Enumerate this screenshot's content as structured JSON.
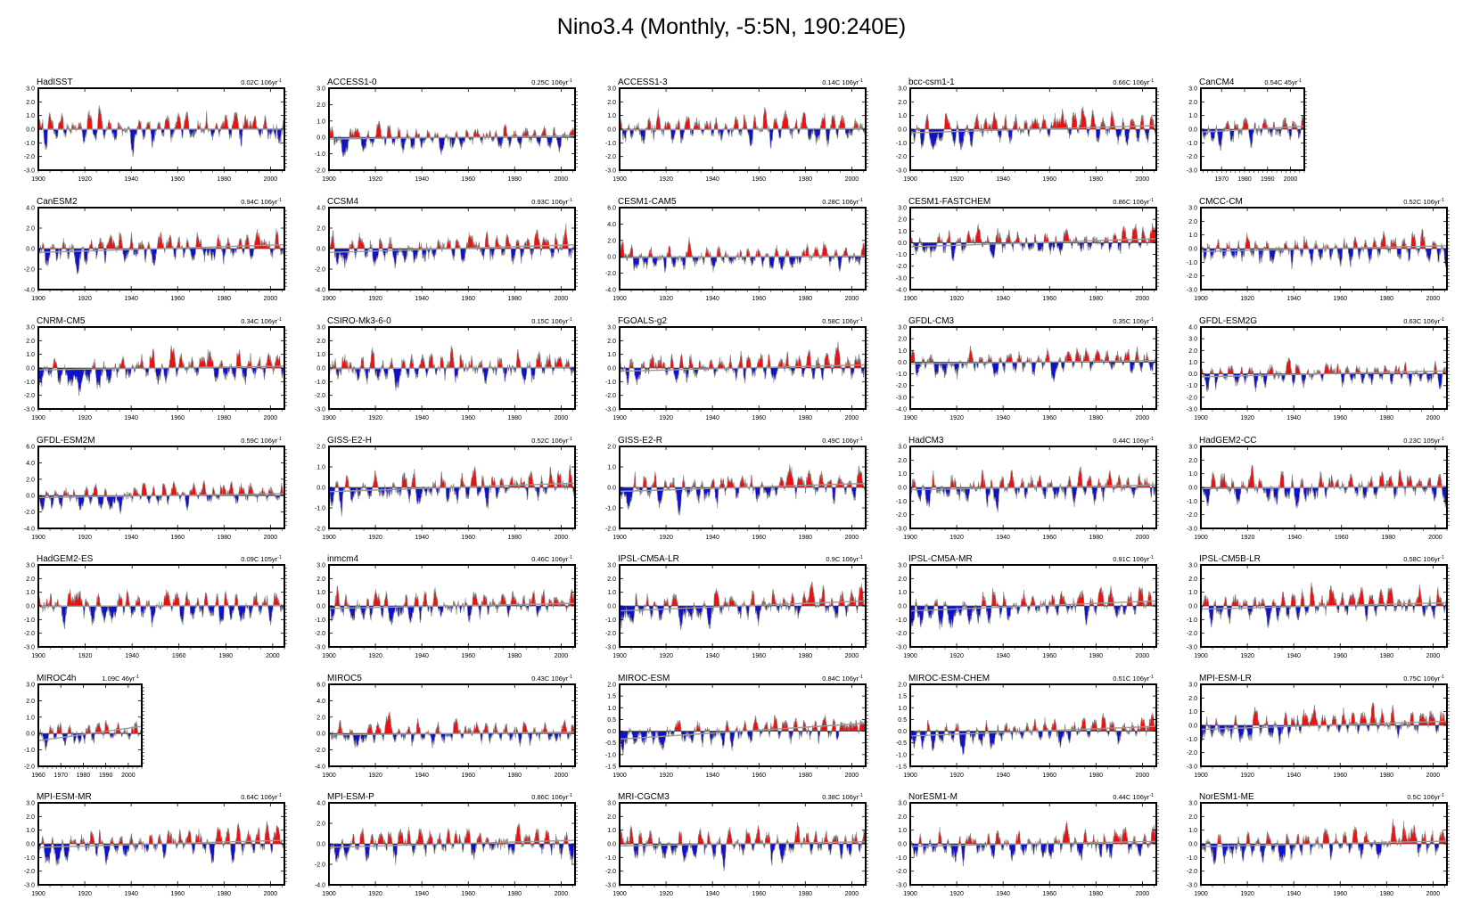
{
  "title": "Nino3.4 (Monthly, -5:5N, 190:240E)",
  "colors": {
    "positive": "#ee1111",
    "negative": "#1111cc",
    "line": "#888888",
    "trend": "#999999",
    "axis": "#000000"
  },
  "chart_data": [
    {
      "type": "area",
      "model": "HadISST",
      "trend": "0.02C 106yr",
      "trend_exp": "-1",
      "y_ticks": [
        "3.0",
        "2.0",
        "1.0",
        "0.0",
        "-1.0",
        "-2.0",
        "-3.0"
      ],
      "ylim": [
        -3,
        3
      ],
      "x_ticks": [
        1900,
        1920,
        1940,
        1960,
        1980,
        2000
      ],
      "xlim": [
        1900,
        2006
      ]
    },
    {
      "type": "area",
      "model": "ACCESS1-0",
      "trend": "0.25C 106yr",
      "trend_exp": "-1",
      "y_ticks": [
        "3.0",
        "2.0",
        "1.0",
        "0.0",
        "-1.0",
        "-2.0"
      ],
      "ylim": [
        -2,
        3
      ],
      "x_ticks": [
        1900,
        1920,
        1940,
        1960,
        1980,
        2000
      ],
      "xlim": [
        1900,
        2006
      ]
    },
    {
      "type": "area",
      "model": "ACCESS1-3",
      "trend": "0.14C 106yr",
      "trend_exp": "-1",
      "y_ticks": [
        "3.0",
        "2.0",
        "1.0",
        "0.0",
        "-1.0",
        "-2.0",
        "-3.0"
      ],
      "ylim": [
        -3,
        3
      ],
      "x_ticks": [
        1900,
        1920,
        1940,
        1960,
        1980,
        2000
      ],
      "xlim": [
        1900,
        2006
      ]
    },
    {
      "type": "area",
      "model": "bcc-csm1-1",
      "trend": "0.66C 106yr",
      "trend_exp": "-1",
      "y_ticks": [
        "3.0",
        "2.0",
        "1.0",
        "0.0",
        "-1.0",
        "-2.0",
        "-3.0"
      ],
      "ylim": [
        -3,
        3
      ],
      "x_ticks": [
        1900,
        1920,
        1940,
        1960,
        1980,
        2000
      ],
      "xlim": [
        1900,
        2006
      ]
    },
    {
      "type": "area",
      "model": "CanCM4",
      "trend": "0.54C 45yr",
      "trend_exp": "-1",
      "y_ticks": [
        "3.0",
        "2.0",
        "1.0",
        "0.0",
        "-1.0",
        "-2.0",
        "-3.0"
      ],
      "ylim": [
        -3,
        3
      ],
      "x_ticks": [
        1970,
        1980,
        1990,
        2000
      ],
      "xlim": [
        1961,
        2006
      ]
    },
    {
      "type": "area",
      "model": "CanESM2",
      "trend": "0.94C 106yr",
      "trend_exp": "-1",
      "y_ticks": [
        "4.0",
        "2.0",
        "0.0",
        "-2.0",
        "-4.0"
      ],
      "ylim": [
        -4,
        4
      ],
      "x_ticks": [
        1900,
        1920,
        1940,
        1960,
        1980,
        2000
      ],
      "xlim": [
        1900,
        2006
      ]
    },
    {
      "type": "area",
      "model": "CCSM4",
      "trend": "0.93C 106yr",
      "trend_exp": "-1",
      "y_ticks": [
        "4.0",
        "2.0",
        "0.0",
        "-2.0",
        "-4.0"
      ],
      "ylim": [
        -4,
        4
      ],
      "x_ticks": [
        1900,
        1920,
        1940,
        1960,
        1980,
        2000
      ],
      "xlim": [
        1900,
        2006
      ]
    },
    {
      "type": "area",
      "model": "CESM1-CAM5",
      "trend": "0.28C 106yr",
      "trend_exp": "-1",
      "y_ticks": [
        "6.0",
        "4.0",
        "2.0",
        "0.0",
        "-2.0",
        "-4.0"
      ],
      "ylim": [
        -4,
        6
      ],
      "x_ticks": [
        1900,
        1920,
        1940,
        1960,
        1980,
        2000
      ],
      "xlim": [
        1900,
        2006
      ]
    },
    {
      "type": "area",
      "model": "CESM1-FASTCHEM",
      "trend": "0.86C 106yr",
      "trend_exp": "-1",
      "y_ticks": [
        "3.0",
        "2.0",
        "1.0",
        "0.0",
        "-1.0",
        "-2.0",
        "-3.0",
        "-4.0"
      ],
      "ylim": [
        -4,
        3
      ],
      "x_ticks": [
        1900,
        1920,
        1940,
        1960,
        1980,
        2000
      ],
      "xlim": [
        1900,
        2006
      ]
    },
    {
      "type": "area",
      "model": "CMCC-CM",
      "trend": "0.52C 106yr",
      "trend_exp": "-1",
      "y_ticks": [
        "3.0",
        "2.0",
        "1.0",
        "0.0",
        "-1.0",
        "-2.0",
        "-3.0"
      ],
      "ylim": [
        -3,
        3
      ],
      "x_ticks": [
        1900,
        1920,
        1940,
        1960,
        1980,
        2000
      ],
      "xlim": [
        1900,
        2006
      ]
    },
    {
      "type": "area",
      "model": "CNRM-CM5",
      "trend": "0.34C 106yr",
      "trend_exp": "-1",
      "y_ticks": [
        "3.0",
        "2.0",
        "1.0",
        "0.0",
        "-1.0",
        "-2.0",
        "-3.0"
      ],
      "ylim": [
        -3,
        3
      ],
      "x_ticks": [
        1900,
        1920,
        1940,
        1960,
        1980,
        2000
      ],
      "xlim": [
        1900,
        2006
      ]
    },
    {
      "type": "area",
      "model": "CSIRO-Mk3-6-0",
      "trend": "0.15C 106yr",
      "trend_exp": "-1",
      "y_ticks": [
        "3.0",
        "2.0",
        "1.0",
        "0.0",
        "-1.0",
        "-2.0",
        "-3.0"
      ],
      "ylim": [
        -3,
        3
      ],
      "x_ticks": [
        1900,
        1920,
        1940,
        1960,
        1980,
        2000
      ],
      "xlim": [
        1900,
        2006
      ]
    },
    {
      "type": "area",
      "model": "FGOALS-g2",
      "trend": "0.58C 106yr",
      "trend_exp": "-1",
      "y_ticks": [
        "3.0",
        "2.0",
        "1.0",
        "0.0",
        "-1.0",
        "-2.0",
        "-3.0"
      ],
      "ylim": [
        -3,
        3
      ],
      "x_ticks": [
        1900,
        1920,
        1940,
        1960,
        1980,
        2000
      ],
      "xlim": [
        1900,
        2006
      ]
    },
    {
      "type": "area",
      "model": "GFDL-CM3",
      "trend": "0.35C 106yr",
      "trend_exp": "-1",
      "y_ticks": [
        "3.0",
        "2.0",
        "1.0",
        "0.0",
        "-1.0",
        "-2.0",
        "-3.0",
        "-4.0"
      ],
      "ylim": [
        -4,
        3
      ],
      "x_ticks": [
        1900,
        1920,
        1940,
        1960,
        1980,
        2000
      ],
      "xlim": [
        1900,
        2006
      ]
    },
    {
      "type": "area",
      "model": "GFDL-ESM2G",
      "trend": "0.63C 106yr",
      "trend_exp": "-1",
      "y_ticks": [
        "4.0",
        "3.0",
        "2.0",
        "1.0",
        "0.0",
        "-1.0",
        "-2.0",
        "-3.0"
      ],
      "ylim": [
        -3,
        4
      ],
      "x_ticks": [
        1900,
        1920,
        1940,
        1960,
        1980,
        2000
      ],
      "xlim": [
        1900,
        2006
      ]
    },
    {
      "type": "area",
      "model": "GFDL-ESM2M",
      "trend": "0.59C 106yr",
      "trend_exp": "-1",
      "y_ticks": [
        "6.0",
        "4.0",
        "2.0",
        "0.0",
        "-2.0",
        "-4.0"
      ],
      "ylim": [
        -4,
        6
      ],
      "x_ticks": [
        1900,
        1920,
        1940,
        1960,
        1980,
        2000
      ],
      "xlim": [
        1900,
        2006
      ]
    },
    {
      "type": "area",
      "model": "GISS-E2-H",
      "trend": "0.52C 106yr",
      "trend_exp": "-1",
      "y_ticks": [
        "2.0",
        "1.0",
        "0.0",
        "-1.0",
        "-2.0"
      ],
      "ylim": [
        -2,
        2
      ],
      "x_ticks": [
        1900,
        1920,
        1940,
        1960,
        1980,
        2000
      ],
      "xlim": [
        1900,
        2006
      ]
    },
    {
      "type": "area",
      "model": "GISS-E2-R",
      "trend": "0.49C 106yr",
      "trend_exp": "-1",
      "y_ticks": [
        "2.0",
        "1.0",
        "0.0",
        "-1.0",
        "-2.0"
      ],
      "ylim": [
        -2,
        2
      ],
      "x_ticks": [
        1900,
        1920,
        1940,
        1960,
        1980,
        2000
      ],
      "xlim": [
        1900,
        2006
      ]
    },
    {
      "type": "area",
      "model": "HadCM3",
      "trend": "0.44C 106yr",
      "trend_exp": "-1",
      "y_ticks": [
        "3.0",
        "2.0",
        "1.0",
        "0.0",
        "-1.0",
        "-2.0",
        "-3.0"
      ],
      "ylim": [
        -3,
        3
      ],
      "x_ticks": [
        1900,
        1920,
        1940,
        1960,
        1980,
        2000
      ],
      "xlim": [
        1900,
        2006
      ]
    },
    {
      "type": "area",
      "model": "HadGEM2-CC",
      "trend": "0.23C 105yr",
      "trend_exp": "-1",
      "y_ticks": [
        "3.0",
        "2.0",
        "1.0",
        "0.0",
        "-1.0",
        "-2.0",
        "-3.0"
      ],
      "ylim": [
        -3,
        3
      ],
      "x_ticks": [
        1900,
        1920,
        1940,
        1960,
        1980,
        2000
      ],
      "xlim": [
        1900,
        2005
      ]
    },
    {
      "type": "area",
      "model": "HadGEM2-ES",
      "trend": "0.09C 105yr",
      "trend_exp": "-1",
      "y_ticks": [
        "3.0",
        "2.0",
        "1.0",
        "0.0",
        "-1.0",
        "-2.0",
        "-3.0"
      ],
      "ylim": [
        -3,
        3
      ],
      "x_ticks": [
        1900,
        1920,
        1940,
        1960,
        1980,
        2000
      ],
      "xlim": [
        1900,
        2005
      ]
    },
    {
      "type": "area",
      "model": "inmcm4",
      "trend": "0.46C 106yr",
      "trend_exp": "-1",
      "y_ticks": [
        "3.0",
        "2.0",
        "1.0",
        "0.0",
        "-1.0",
        "-2.0",
        "-3.0"
      ],
      "ylim": [
        -3,
        3
      ],
      "x_ticks": [
        1900,
        1920,
        1940,
        1960,
        1980,
        2000
      ],
      "xlim": [
        1900,
        2006
      ]
    },
    {
      "type": "area",
      "model": "IPSL-CM5A-LR",
      "trend": "0.9C 106yr",
      "trend_exp": "-1",
      "y_ticks": [
        "3.0",
        "2.0",
        "1.0",
        "0.0",
        "-1.0",
        "-2.0",
        "-3.0"
      ],
      "ylim": [
        -3,
        3
      ],
      "x_ticks": [
        1900,
        1920,
        1940,
        1960,
        1980,
        2000
      ],
      "xlim": [
        1900,
        2006
      ]
    },
    {
      "type": "area",
      "model": "IPSL-CM5A-MR",
      "trend": "0.91C 106yr",
      "trend_exp": "-1",
      "y_ticks": [
        "3.0",
        "2.0",
        "1.0",
        "0.0",
        "-1.0",
        "-2.0",
        "-3.0"
      ],
      "ylim": [
        -3,
        3
      ],
      "x_ticks": [
        1900,
        1920,
        1940,
        1960,
        1980,
        2000
      ],
      "xlim": [
        1900,
        2006
      ]
    },
    {
      "type": "area",
      "model": "IPSL-CM5B-LR",
      "trend": "0.58C 106yr",
      "trend_exp": "-1",
      "y_ticks": [
        "3.0",
        "2.0",
        "1.0",
        "0.0",
        "-1.0",
        "-2.0",
        "-3.0"
      ],
      "ylim": [
        -3,
        3
      ],
      "x_ticks": [
        1900,
        1920,
        1940,
        1960,
        1980,
        2000
      ],
      "xlim": [
        1900,
        2006
      ]
    },
    {
      "type": "area",
      "model": "MIROC4h",
      "trend": "1.09C 46yr",
      "trend_exp": "-1",
      "y_ticks": [
        "3.0",
        "2.0",
        "1.0",
        "0.0",
        "-1.0",
        "-2.0"
      ],
      "ylim": [
        -2,
        3
      ],
      "x_ticks": [
        1960,
        1970,
        1980,
        1990,
        2000
      ],
      "xlim": [
        1960,
        2006
      ]
    },
    {
      "type": "area",
      "model": "MIROC5",
      "trend": "0.43C 106yr",
      "trend_exp": "-1",
      "y_ticks": [
        "6.0",
        "4.0",
        "2.0",
        "0.0",
        "-2.0",
        "-4.0"
      ],
      "ylim": [
        -4,
        6
      ],
      "x_ticks": [
        1900,
        1920,
        1940,
        1960,
        1980,
        2000
      ],
      "xlim": [
        1900,
        2006
      ]
    },
    {
      "type": "area",
      "model": "MIROC-ESM",
      "trend": "0.84C 106yr",
      "trend_exp": "-1",
      "y_ticks": [
        "2.0",
        "1.5",
        "1.0",
        "0.5",
        "0.0",
        "-0.5",
        "-1.0",
        "-1.5"
      ],
      "ylim": [
        -1.5,
        2
      ],
      "x_ticks": [
        1900,
        1920,
        1940,
        1960,
        1980,
        2000
      ],
      "xlim": [
        1900,
        2006
      ]
    },
    {
      "type": "area",
      "model": "MIROC-ESM-CHEM",
      "trend": "0.51C 106yr",
      "trend_exp": "-1",
      "y_ticks": [
        "2.0",
        "1.5",
        "1.0",
        "0.5",
        "0.0",
        "-0.5",
        "-1.0",
        "-1.5"
      ],
      "ylim": [
        -1.5,
        2
      ],
      "x_ticks": [
        1900,
        1920,
        1940,
        1960,
        1980,
        2000
      ],
      "xlim": [
        1900,
        2006
      ]
    },
    {
      "type": "area",
      "model": "MPI-ESM-LR",
      "trend": "0.75C 106yr",
      "trend_exp": "-1",
      "y_ticks": [
        "3.0",
        "2.0",
        "1.0",
        "0.0",
        "-1.0",
        "-2.0",
        "-3.0"
      ],
      "ylim": [
        -3,
        3
      ],
      "x_ticks": [
        1900,
        1920,
        1940,
        1960,
        1980,
        2000
      ],
      "xlim": [
        1900,
        2006
      ]
    },
    {
      "type": "area",
      "model": "MPI-ESM-MR",
      "trend": "0.64C 106yr",
      "trend_exp": "-1",
      "y_ticks": [
        "3.0",
        "2.0",
        "1.0",
        "0.0",
        "-1.0",
        "-2.0",
        "-3.0"
      ],
      "ylim": [
        -3,
        3
      ],
      "x_ticks": [
        1900,
        1920,
        1940,
        1960,
        1980,
        2000
      ],
      "xlim": [
        1900,
        2006
      ]
    },
    {
      "type": "area",
      "model": "MPI-ESM-P",
      "trend": "0.86C 106yr",
      "trend_exp": "-1",
      "y_ticks": [
        "4.0",
        "2.0",
        "0.0",
        "-2.0",
        "-4.0"
      ],
      "ylim": [
        -4,
        4
      ],
      "x_ticks": [
        1900,
        1920,
        1940,
        1960,
        1980,
        2000
      ],
      "xlim": [
        1900,
        2006
      ]
    },
    {
      "type": "area",
      "model": "MRI-CGCM3",
      "trend": "0.38C 106yr",
      "trend_exp": "-1",
      "y_ticks": [
        "3.0",
        "2.0",
        "1.0",
        "0.0",
        "-1.0",
        "-2.0",
        "-3.0"
      ],
      "ylim": [
        -3,
        3
      ],
      "x_ticks": [
        1900,
        1920,
        1940,
        1960,
        1980,
        2000
      ],
      "xlim": [
        1900,
        2006
      ]
    },
    {
      "type": "area",
      "model": "NorESM1-M",
      "trend": "0.44C 106yr",
      "trend_exp": "-1",
      "y_ticks": [
        "3.0",
        "2.0",
        "1.0",
        "0.0",
        "-1.0",
        "-2.0",
        "-3.0"
      ],
      "ylim": [
        -3,
        3
      ],
      "x_ticks": [
        1900,
        1920,
        1940,
        1960,
        1980,
        2000
      ],
      "xlim": [
        1900,
        2006
      ]
    },
    {
      "type": "area",
      "model": "NorESM1-ME",
      "trend": "0.5C 106yr",
      "trend_exp": "-1",
      "y_ticks": [
        "3.0",
        "2.0",
        "1.0",
        "0.0",
        "-1.0",
        "-2.0",
        "-3.0"
      ],
      "ylim": [
        -3,
        3
      ],
      "x_ticks": [
        1900,
        1920,
        1940,
        1960,
        1980,
        2000
      ],
      "xlim": [
        1900,
        2006
      ]
    }
  ]
}
